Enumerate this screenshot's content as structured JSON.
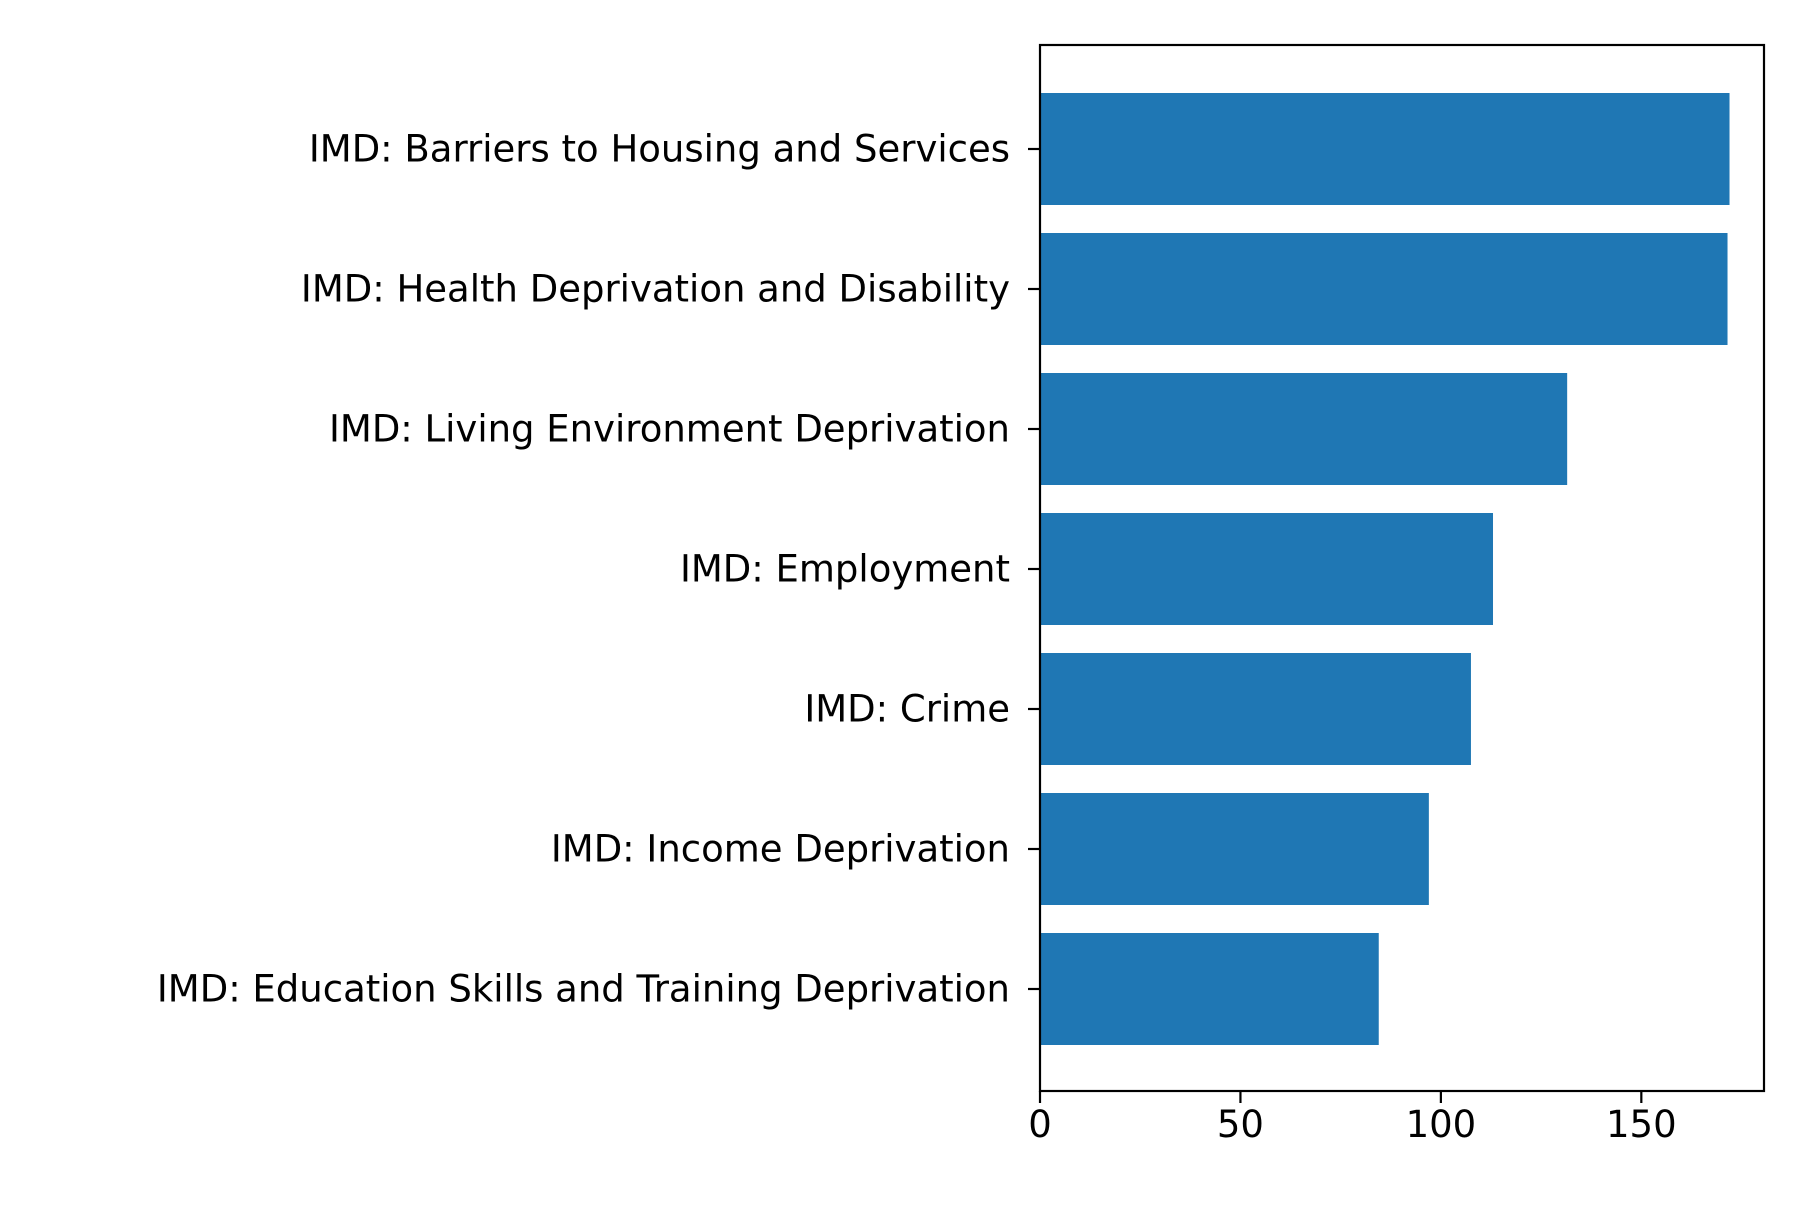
{
  "chart_data": {
    "type": "bar",
    "orientation": "horizontal",
    "title": "",
    "xlabel": "",
    "ylabel": "",
    "categories": [
      "IMD: Barriers to Housing and Services",
      "IMD: Health Deprivation and Disability",
      "IMD: Living Environment Deprivation",
      "IMD: Employment",
      "IMD: Crime",
      "IMD: Income Deprivation",
      "IMD: Education Skills and Training Deprivation"
    ],
    "values": [
      172,
      171.5,
      131.5,
      113,
      107.5,
      97,
      84.5
    ],
    "xlim": [
      0,
      180.6
    ],
    "xticks": [
      0,
      50,
      100,
      150
    ],
    "xtick_labels": [
      "0",
      "50",
      "100",
      "150"
    ],
    "grid": false,
    "bar_color": "#1f77b4"
  }
}
